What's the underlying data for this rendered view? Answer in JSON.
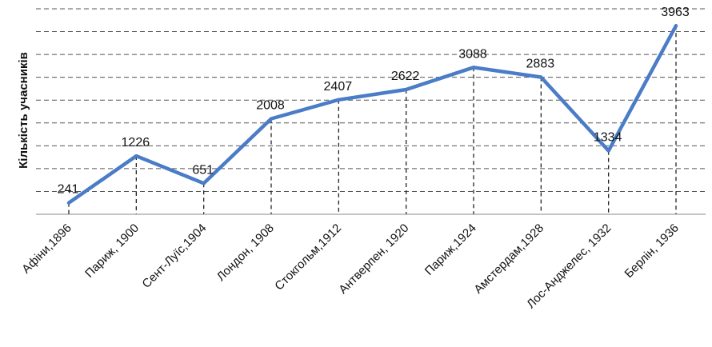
{
  "chart_data": {
    "type": "line",
    "title": "",
    "xlabel": "",
    "ylabel": "Кількість учасників",
    "categories": [
      "Афіни,1896",
      "Париж, 1900",
      "Сент-Луїс,1904",
      "Лондон, 1908",
      "Стокгольм,1912",
      "Антверпен, 1920",
      "Париж,1924",
      "Амстердам,1928",
      "Лос-Анджелес, 1932",
      "Берлін, 1936"
    ],
    "series": [
      {
        "values": [
          241,
          1226,
          651,
          2008,
          2407,
          2622,
          3088,
          2883,
          1334,
          3963
        ],
        "color": "#4a7cc7"
      }
    ],
    "ylim": [
      0,
      4000
    ],
    "grid": true,
    "legend": "none"
  }
}
